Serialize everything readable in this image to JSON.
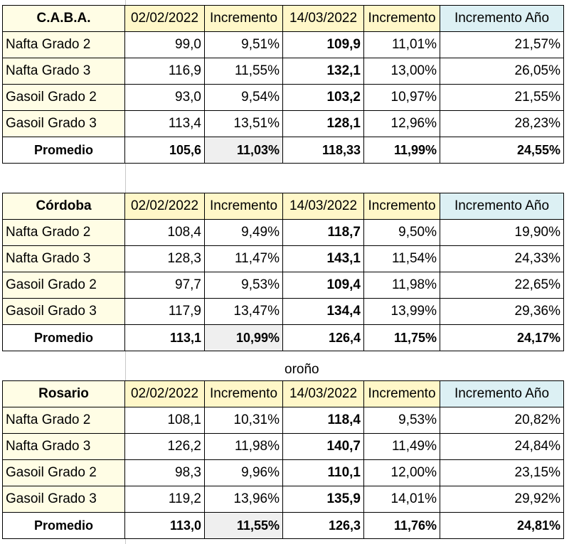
{
  "headers": {
    "date1": "02/02/2022",
    "inc1": "Incremento",
    "date2": "14/03/2022",
    "inc2": "Incremento",
    "year": "Incremento Año"
  },
  "tables": [
    {
      "city": "C.A.B.A.",
      "rows": [
        {
          "label": "Nafta Grado 2",
          "v1": "99,0",
          "i1": "9,51%",
          "v2": "109,9",
          "i2": "11,01%",
          "year": "21,57%"
        },
        {
          "label": "Nafta Grado 3",
          "v1": "116,9",
          "i1": "11,55%",
          "v2": "132,1",
          "i2": "13,00%",
          "year": "26,05%"
        },
        {
          "label": "Gasoil Grado 2",
          "v1": "93,0",
          "i1": "9,54%",
          "v2": "103,2",
          "i2": "10,97%",
          "year": "21,55%"
        },
        {
          "label": "Gasoil Grado 3",
          "v1": "113,4",
          "i1": "13,51%",
          "v2": "128,1",
          "i2": "12,96%",
          "year": "28,23%"
        }
      ],
      "avg": {
        "label": "Promedio",
        "v1": "105,6",
        "i1": "11,03%",
        "v2": "118,33",
        "i2": "11,99%",
        "year": "24,55%"
      }
    },
    {
      "city": "Córdoba",
      "rows": [
        {
          "label": "Nafta Grado 2",
          "v1": "108,4",
          "i1": "9,49%",
          "v2": "118,7",
          "i2": "9,50%",
          "year": "19,90%"
        },
        {
          "label": "Nafta Grado 3",
          "v1": "128,3",
          "i1": "11,47%",
          "v2": "143,1",
          "i2": "11,54%",
          "year": "24,33%"
        },
        {
          "label": "Gasoil Grado 2",
          "v1": "97,7",
          "i1": "9,53%",
          "v2": "109,4",
          "i2": "11,98%",
          "year": "22,65%"
        },
        {
          "label": "Gasoil Grado 3",
          "v1": "117,9",
          "i1": "13,47%",
          "v2": "134,4",
          "i2": "13,99%",
          "year": "29,36%"
        }
      ],
      "avg": {
        "label": "Promedio",
        "v1": "113,1",
        "i1": "10,99%",
        "v2": "126,4",
        "i2": "11,75%",
        "year": "24,17%"
      }
    },
    {
      "city": "Rosario",
      "rows": [
        {
          "label": "Nafta Grado 2",
          "v1": "108,1",
          "i1": "10,31%",
          "v2": "118,4",
          "i2": "9,53%",
          "year": "20,82%"
        },
        {
          "label": "Nafta Grado 3",
          "v1": "126,2",
          "i1": "11,98%",
          "v2": "140,7",
          "i2": "11,49%",
          "year": "24,84%"
        },
        {
          "label": "Gasoil Grado 2",
          "v1": "98,3",
          "i1": "9,96%",
          "v2": "110,1",
          "i2": "12,00%",
          "year": "23,15%"
        },
        {
          "label": "Gasoil Grado 3",
          "v1": "119,2",
          "i1": "13,96%",
          "v2": "135,9",
          "i2": "14,01%",
          "year": "29,92%"
        }
      ],
      "avg": {
        "label": "Promedio",
        "v1": "113,0",
        "i1": "11,55%",
        "v2": "126,3",
        "i2": "11,76%",
        "year": "24,81%"
      }
    }
  ],
  "caption": "oroño"
}
